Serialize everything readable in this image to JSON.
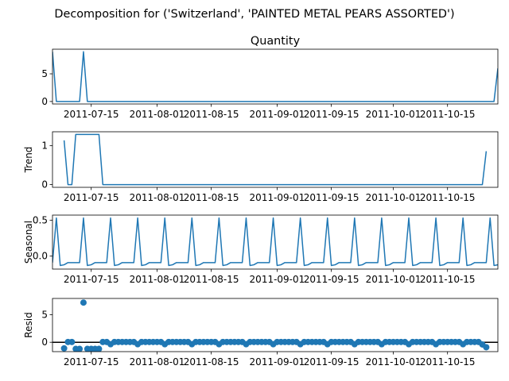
{
  "figure_title": "Decomposition for ('Switzerland', 'PAINTED METAL PEARS ASSORTED')",
  "colors": {
    "series": "#1f77b4",
    "axis": "#000000",
    "background": "#ffffff"
  },
  "chart_data": [
    {
      "type": "line",
      "title": "Quantity",
      "xlabel": "",
      "ylabel": "",
      "xlim": [
        "2011-07-05",
        "2011-10-28"
      ],
      "ylim": [
        -0.45,
        9.45
      ],
      "yticks": [
        0,
        5
      ],
      "xticks": [
        "2011-07-15",
        "2011-08-01",
        "2011-08-15",
        "2011-09-01",
        "2011-09-15",
        "2011-10-01",
        "2011-10-15"
      ],
      "grid": false,
      "series": [
        {
          "points": [
            [
              "2011-07-05",
              9
            ],
            [
              "2011-07-06",
              0
            ],
            [
              "2011-07-12",
              0
            ],
            [
              "2011-07-13",
              9
            ],
            [
              "2011-07-14",
              0
            ],
            [
              "2011-10-27",
              0
            ],
            [
              "2011-10-28",
              6
            ]
          ]
        }
      ]
    },
    {
      "type": "line",
      "title": "",
      "xlabel": "",
      "ylabel": "Trend",
      "xlim": [
        "2011-07-05",
        "2011-10-28"
      ],
      "ylim": [
        -0.07,
        1.36
      ],
      "yticks": [
        0,
        1
      ],
      "xticks": [
        "2011-07-15",
        "2011-08-01",
        "2011-08-15",
        "2011-09-01",
        "2011-09-15",
        "2011-10-01",
        "2011-10-15"
      ],
      "grid": false,
      "series": [
        {
          "points": [
            [
              "2011-07-08",
              1.14
            ],
            [
              "2011-07-09",
              0
            ],
            [
              "2011-07-10",
              0
            ],
            [
              "2011-07-11",
              1.29
            ],
            [
              "2011-07-17",
              1.29
            ],
            [
              "2011-07-18",
              0
            ],
            [
              "2011-10-24",
              0
            ],
            [
              "2011-10-25",
              0.86
            ]
          ]
        }
      ]
    },
    {
      "type": "line",
      "title": "",
      "xlabel": "",
      "ylabel": "Seasonal",
      "xlim": [
        "2011-07-05",
        "2011-10-28"
      ],
      "ylim": [
        -0.18,
        0.57
      ],
      "yticks": [
        0.0,
        0.5
      ],
      "xticks": [
        "2011-07-15",
        "2011-08-01",
        "2011-08-15",
        "2011-09-01",
        "2011-09-15",
        "2011-10-01",
        "2011-10-15"
      ],
      "grid": false,
      "period_days": 7,
      "first_date": "2011-07-05",
      "last_date": "2011-10-28",
      "weekly_pattern": [
        -0.09,
        0.53,
        -0.13,
        -0.12,
        -0.09,
        -0.09,
        -0.09
      ]
    },
    {
      "type": "scatter",
      "title": "",
      "xlabel": "",
      "ylabel": "Resid",
      "xlim": [
        "2011-07-05",
        "2011-10-28"
      ],
      "ylim": [
        -1.7,
        7.95
      ],
      "yticks": [
        0,
        5
      ],
      "xticks": [
        "2011-07-15",
        "2011-08-01",
        "2011-08-15",
        "2011-09-01",
        "2011-09-15",
        "2011-10-01",
        "2011-10-15"
      ],
      "grid": false,
      "baseline": 0,
      "first_date": "2011-07-08",
      "last_date": "2011-10-25",
      "default_value": 0.05,
      "special_points": [
        [
          "2011-07-08",
          -1.1
        ],
        [
          "2011-07-11",
          -1.2
        ],
        [
          "2011-07-12",
          -1.2
        ],
        [
          "2011-07-13",
          7.2
        ],
        [
          "2011-07-14",
          -1.2
        ],
        [
          "2011-07-15",
          -1.2
        ],
        [
          "2011-07-16",
          -1.2
        ],
        [
          "2011-07-17",
          -1.2
        ],
        [
          "2011-10-24",
          -0.4
        ],
        [
          "2011-10-25",
          -0.9
        ]
      ],
      "weekly_low": -0.35,
      "weekly_low_start": "2011-07-20"
    }
  ]
}
